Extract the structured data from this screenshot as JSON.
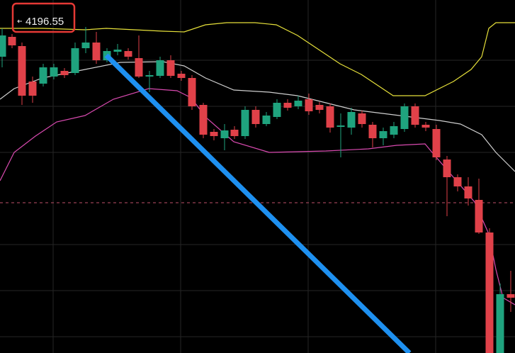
{
  "price_label": "4196.55"
}
